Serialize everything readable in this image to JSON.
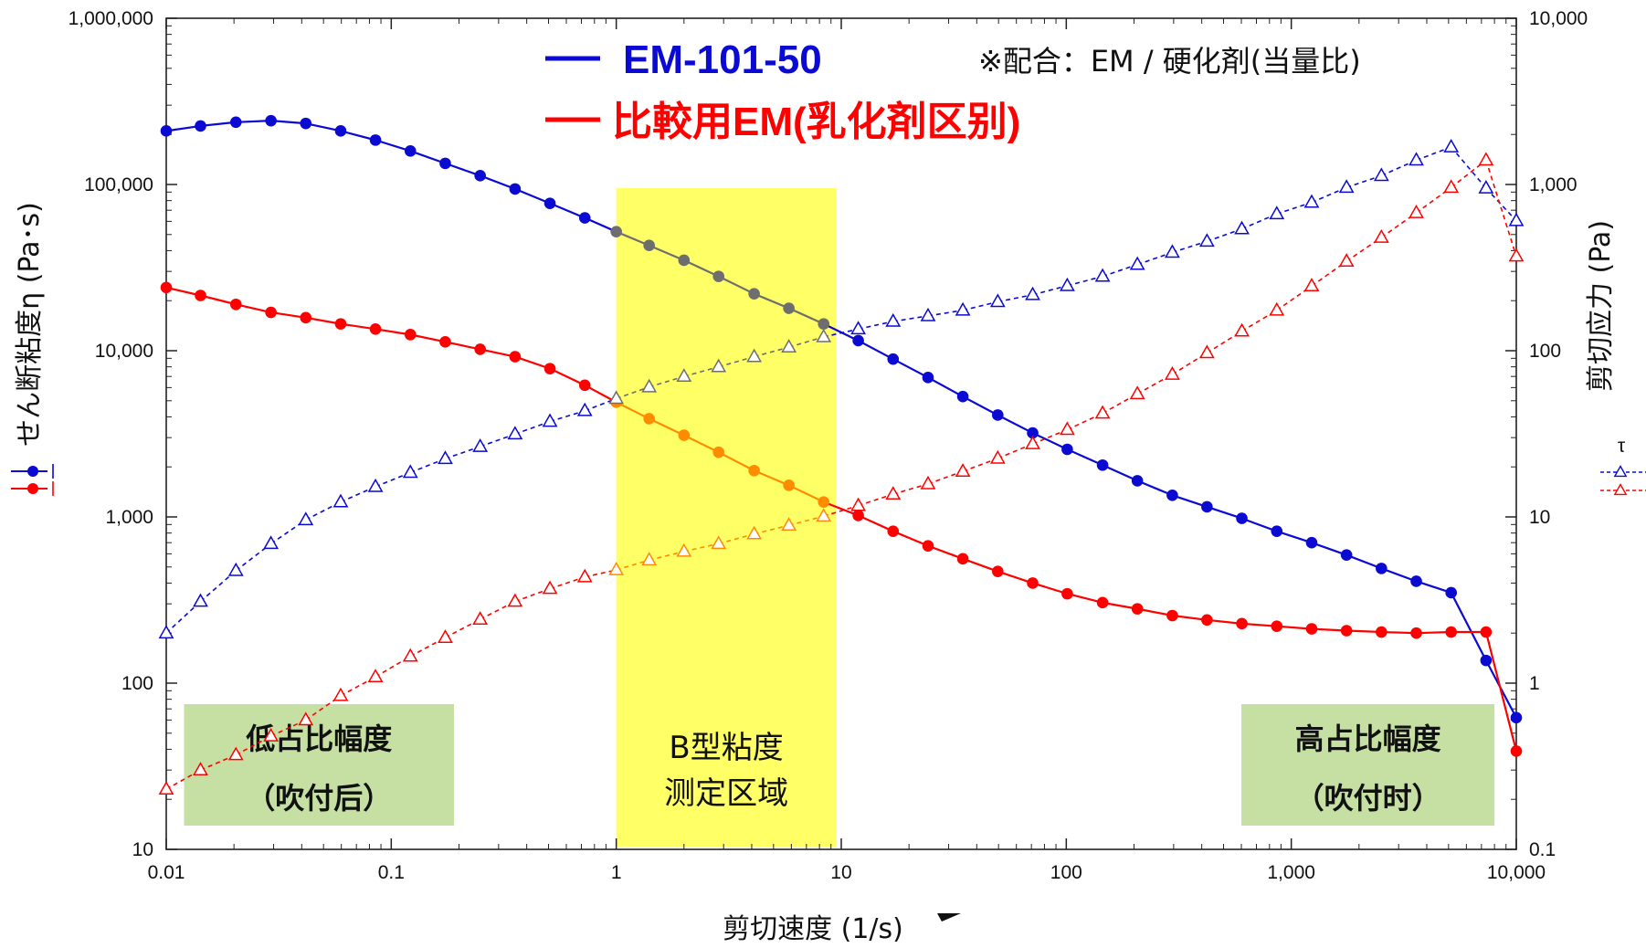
{
  "chart_data": {
    "type": "line",
    "x_scale": "log",
    "y_scale": "log",
    "y2_scale": "log",
    "xlim": [
      0.01,
      10000
    ],
    "ylim": [
      10,
      1000000
    ],
    "y2lim": [
      0.1,
      10000
    ],
    "xlabel": "剪切速度 (1/s)",
    "ylabel": "せん断粘度η (Pa･s)",
    "y2label": "剪切应力 (Pa)",
    "y2label_symbol": "τ",
    "x_ticks": [
      {
        "value": 0.01,
        "label": "0.01"
      },
      {
        "value": 0.1,
        "label": "0.1"
      },
      {
        "value": 1,
        "label": "1"
      },
      {
        "value": 10,
        "label": "10"
      },
      {
        "value": 100,
        "label": "100"
      },
      {
        "value": 1000,
        "label": "1,000"
      },
      {
        "value": 10000,
        "label": "10,000"
      }
    ],
    "y_ticks": [
      {
        "value": 10,
        "label": "10"
      },
      {
        "value": 100,
        "label": "100"
      },
      {
        "value": 1000,
        "label": "1,000"
      },
      {
        "value": 10000,
        "label": "10,000"
      },
      {
        "value": 100000,
        "label": "100,000"
      },
      {
        "value": 1000000,
        "label": "1,000,000"
      }
    ],
    "y2_ticks": [
      {
        "value": 0.1,
        "label": "0.1"
      },
      {
        "value": 1,
        "label": "1"
      },
      {
        "value": 10,
        "label": "10"
      },
      {
        "value": 100,
        "label": "100"
      },
      {
        "value": 1000,
        "label": "1,000"
      },
      {
        "value": 10000,
        "label": "10,000"
      }
    ],
    "legend": {
      "entries": [
        {
          "name": "EM-101-50",
          "color": "#0a0ad2"
        },
        {
          "name": "比較用EM(乳化剤区别)",
          "color": "#ff0000"
        }
      ],
      "note": "※配合：EM / 硬化剤(当量比)"
    },
    "highlight_band": {
      "x_from": 1,
      "x_to": 9.5,
      "color": "#ffff66",
      "label_lines": [
        "B型粘度",
        "测定区域"
      ]
    },
    "annotation_boxes": [
      {
        "x_from": 0.012,
        "x_to": 0.19,
        "color": "#c6e0a4",
        "lines": [
          "低占比幅度",
          "（吹付后）"
        ]
      },
      {
        "x_from": 600,
        "x_to": 8000,
        "color": "#c6e0a4",
        "lines": [
          "高占比幅度",
          "（吹付时）"
        ]
      }
    ],
    "x": [
      0.01,
      0.0142,
      0.0204,
      0.0292,
      0.0417,
      0.0596,
      0.0851,
      0.1216,
      0.1738,
      0.2484,
      0.355,
      0.5073,
      0.7248,
      1.0,
      1.4,
      2.0,
      2.85,
      4.1,
      5.85,
      8.35,
      11.9,
      17.0,
      24.3,
      34.7,
      49.6,
      70.9,
      101,
      145,
      207,
      296,
      422,
      603,
      862,
      1232,
      1760,
      2515,
      3594,
      5135,
      7338,
      10000
    ],
    "series": [
      {
        "name": "EM-101-50",
        "axis": "left",
        "kind": "viscosity",
        "color": "#0a0ad2",
        "band_color": "#6e6e6e",
        "marker": "filled-circle",
        "line": "solid",
        "values": [
          210000,
          225000,
          237000,
          242000,
          233000,
          210000,
          185000,
          159000,
          134000,
          113000,
          94000,
          77000,
          63000,
          52000,
          43000,
          35000,
          28000,
          22000,
          18000,
          14500,
          11500,
          8900,
          6900,
          5300,
          4100,
          3200,
          2550,
          2050,
          1650,
          1350,
          1150,
          980,
          820,
          700,
          590,
          490,
          410,
          350,
          137,
          62
        ]
      },
      {
        "name": "比較用EM(乳化剤区别)",
        "axis": "left",
        "kind": "viscosity",
        "color": "#ff0000",
        "band_color": "#ff8c00",
        "marker": "filled-circle",
        "line": "solid",
        "values": [
          24000,
          21500,
          19000,
          17000,
          15800,
          14500,
          13500,
          12500,
          11300,
          10200,
          9200,
          7800,
          6200,
          4900,
          3900,
          3100,
          2450,
          1900,
          1550,
          1230,
          1020,
          820,
          670,
          560,
          470,
          400,
          345,
          305,
          280,
          255,
          240,
          228,
          220,
          212,
          207,
          203,
          200,
          203,
          203,
          39
        ]
      },
      {
        "name": "EM-101-50",
        "axis": "right",
        "kind": "stress",
        "color": "#0a0ad2",
        "band_color": "#6e6e6e",
        "marker": "open-triangle",
        "line": "dashed",
        "values": [
          2.0,
          3.1,
          4.75,
          6.9,
          9.6,
          12.3,
          15.2,
          18.5,
          22.4,
          26.5,
          31.5,
          37.5,
          43.5,
          51.5,
          60.5,
          70,
          80,
          92,
          105,
          121,
          135,
          150,
          162,
          175,
          197,
          217,
          246,
          280,
          330,
          390,
          455,
          540,
          665,
          780,
          960,
          1130,
          1400,
          1680,
          950,
          605
        ]
      },
      {
        "name": "比較用EM(乳化剤区别)",
        "axis": "right",
        "kind": "stress",
        "color": "#ff0000",
        "band_color": "#ff8c00",
        "marker": "open-triangle",
        "line": "dashed",
        "values": [
          0.23,
          0.3,
          0.37,
          0.48,
          0.6,
          0.84,
          1.09,
          1.45,
          1.88,
          2.42,
          3.1,
          3.7,
          4.35,
          4.8,
          5.5,
          6.2,
          6.9,
          7.9,
          8.9,
          10.1,
          11.7,
          13.7,
          15.8,
          18.8,
          22.5,
          27.5,
          33.5,
          42,
          55,
          72,
          97,
          131,
          175,
          245,
          345,
          480,
          675,
          960,
          1400,
          370
        ]
      }
    ]
  }
}
